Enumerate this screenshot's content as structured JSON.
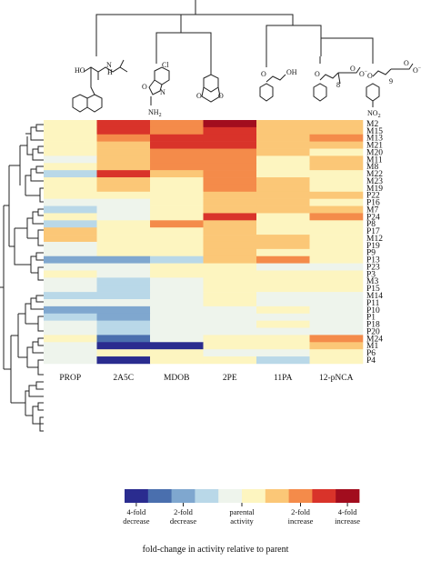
{
  "chart_data": {
    "type": "heatmap",
    "title": "",
    "columns": [
      "PROP",
      "2A5C",
      "MDOB",
      "2PE",
      "11PA",
      "12-pNCA"
    ],
    "rows": [
      "M2",
      "M15",
      "M13",
      "M21",
      "M20",
      "M11",
      "M8",
      "M22",
      "M23",
      "M19",
      "P22",
      "P16",
      "M7",
      "P24",
      "P8",
      "P17",
      "M12",
      "P19",
      "P9",
      "P13",
      "P23",
      "P3",
      "M3",
      "P15",
      "M14",
      "P11",
      "P10",
      "P1",
      "P18",
      "P20",
      "M24",
      "M1",
      "P6",
      "P4"
    ],
    "scale_note": "values are discrete color levels 1-10; 1 = 4-fold decrease, 5-6 = parental activity, 10 = 4-fold increase",
    "values": [
      [
        6,
        9,
        8,
        10,
        7,
        7
      ],
      [
        6,
        9,
        8,
        9,
        7,
        7
      ],
      [
        6,
        8,
        9,
        9,
        7,
        8
      ],
      [
        6,
        7,
        9,
        9,
        7,
        7
      ],
      [
        6,
        7,
        8,
        8,
        7,
        6
      ],
      [
        5,
        7,
        8,
        8,
        6,
        7
      ],
      [
        6,
        7,
        8,
        8,
        6,
        7
      ],
      [
        4,
        9,
        7,
        8,
        6,
        6
      ],
      [
        6,
        7,
        6,
        8,
        7,
        6
      ],
      [
        6,
        7,
        6,
        8,
        7,
        6
      ],
      [
        6,
        6,
        6,
        7,
        7,
        7
      ],
      [
        5,
        5,
        6,
        7,
        7,
        6
      ],
      [
        4,
        5,
        6,
        7,
        7,
        7
      ],
      [
        6,
        5,
        6,
        9,
        6,
        8
      ],
      [
        4,
        6,
        8,
        7,
        6,
        6
      ],
      [
        7,
        6,
        6,
        7,
        6,
        6
      ],
      [
        7,
        6,
        6,
        7,
        7,
        6
      ],
      [
        5,
        6,
        6,
        7,
        7,
        6
      ],
      [
        5,
        6,
        6,
        7,
        6,
        6
      ],
      [
        3,
        3,
        4,
        7,
        8,
        6
      ],
      [
        5,
        5,
        6,
        6,
        5,
        5
      ],
      [
        6,
        5,
        6,
        6,
        6,
        6
      ],
      [
        5,
        4,
        5,
        6,
        6,
        6
      ],
      [
        5,
        4,
        5,
        6,
        6,
        6
      ],
      [
        4,
        4,
        5,
        6,
        5,
        5
      ],
      [
        5,
        5,
        5,
        6,
        5,
        5
      ],
      [
        3,
        3,
        5,
        5,
        6,
        5
      ],
      [
        4,
        3,
        5,
        5,
        5,
        5
      ],
      [
        5,
        4,
        5,
        5,
        6,
        5
      ],
      [
        5,
        4,
        5,
        5,
        5,
        5
      ],
      [
        6,
        2,
        5,
        6,
        6,
        8
      ],
      [
        5,
        1,
        1,
        6,
        6,
        7
      ],
      [
        5,
        6,
        6,
        5,
        5,
        6
      ],
      [
        5,
        1,
        6,
        6,
        4,
        6
      ]
    ],
    "colorbar": {
      "colors": [
        "#2a2c8f",
        "#4a6fae",
        "#7fa7cf",
        "#b9d8e8",
        "#eef4ec",
        "#fdf5c0",
        "#fbc777",
        "#f48b4a",
        "#d9332a",
        "#a20d1e"
      ],
      "tick_labels": [
        {
          "level": 1,
          "lines": [
            "4-fold",
            "decrease"
          ]
        },
        {
          "level": 3,
          "lines": [
            "2-fold",
            "decrease"
          ]
        },
        {
          "level": 5.5,
          "lines": [
            "parental",
            "activity"
          ]
        },
        {
          "level": 8,
          "lines": [
            "2-fold",
            "increase"
          ]
        },
        {
          "level": 10,
          "lines": [
            "4-fold",
            "increase"
          ]
        }
      ],
      "caption": "fold-change in activity relative to parent"
    },
    "structure_labels": {
      "prop_oh": "HO",
      "prop_nh": "N",
      "prop_h": "H",
      "a5c_cl": "Cl",
      "a5c_o": "O",
      "a5c_n": "N",
      "a5c_nh2": "NH",
      "a5c_nh2_sub": "2",
      "mdob_o1": "O",
      "mdob_o2": "O",
      "pe_o": "O",
      "pe_oh": "OH",
      "pa_o": "O",
      "pa_o2": "O",
      "pa_ominus": "O",
      "pa_minus": "−",
      "pa_n": "8",
      "nca_o": "O",
      "nca_o2": "O",
      "nca_ominus": "O",
      "nca_minus": "−",
      "nca_n": "9",
      "nca_no2": "NO",
      "nca_no2_sub": "2"
    }
  }
}
